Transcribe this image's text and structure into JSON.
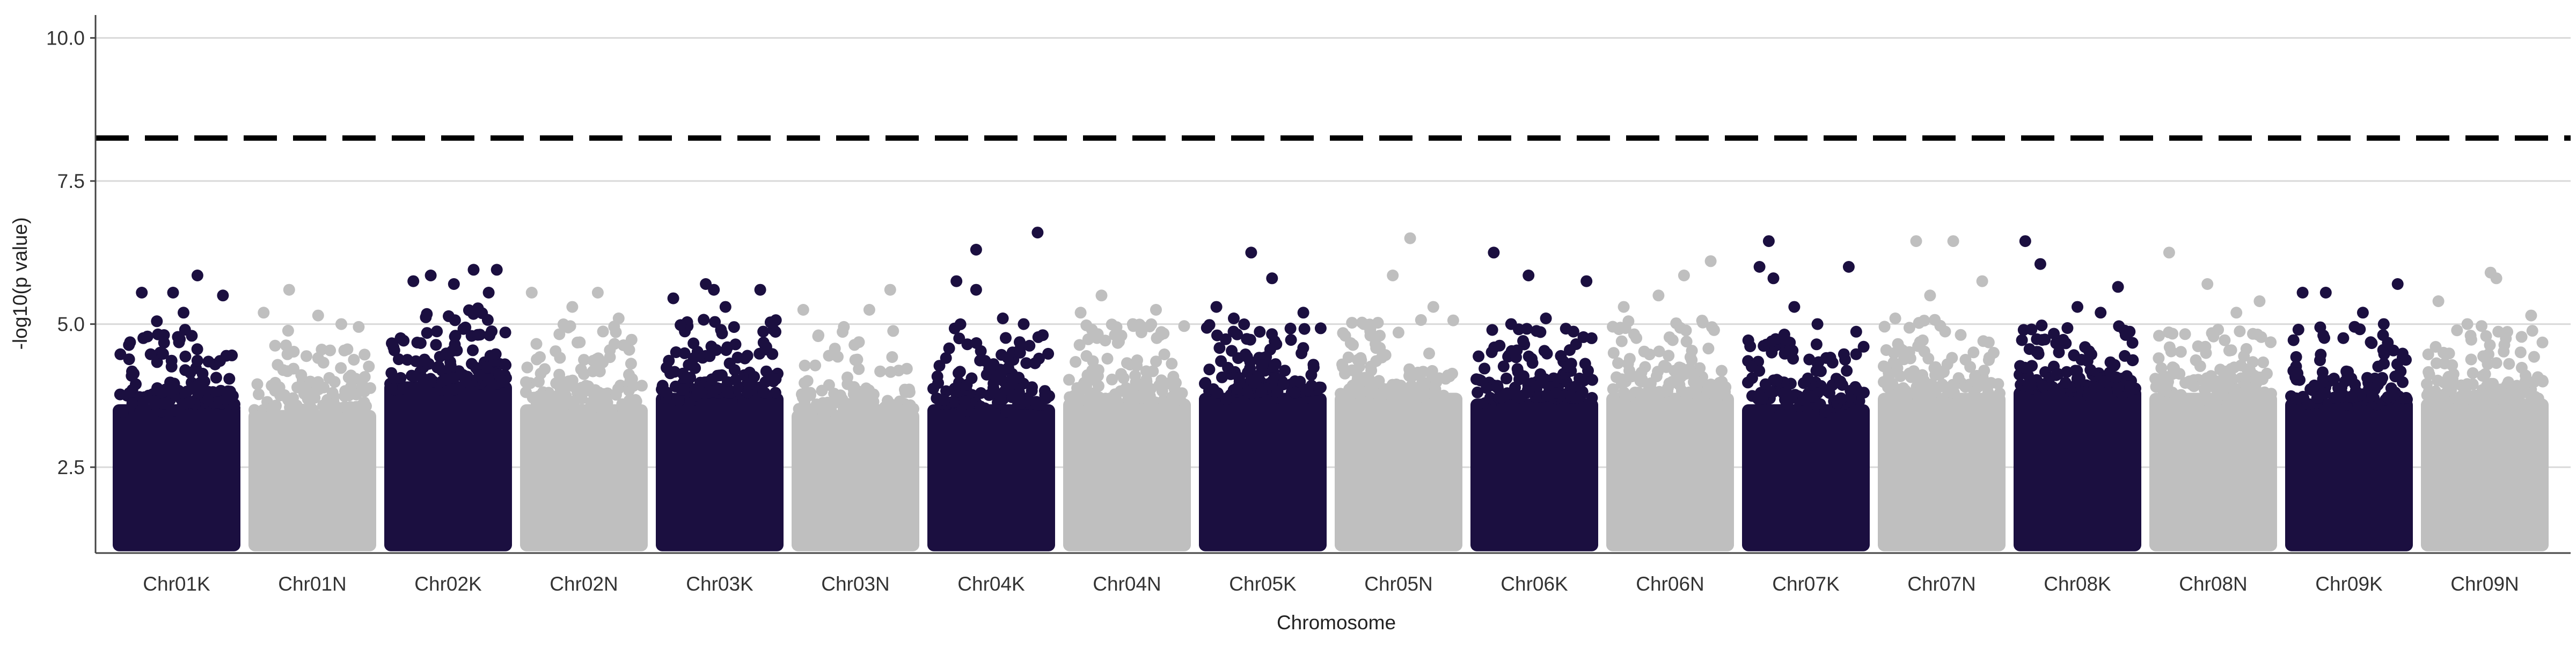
{
  "chart_data": {
    "type": "scatter",
    "title": "",
    "xlabel": "Chromosome",
    "ylabel": "-log10(p value)",
    "ylim": [
      1,
      10.4
    ],
    "yticks": [
      2.5,
      5.0,
      7.5,
      10.0
    ],
    "ytick_labels": [
      "2.5",
      "5.0",
      "7.5",
      "10.0"
    ],
    "threshold": 8.25,
    "grid": "horizontal-major",
    "legend": "none",
    "colors": {
      "odd": "#1b0f40",
      "even": "#bfbfbf",
      "threshold": "#000000",
      "grid": "#d9d9d9",
      "axis": "#444444",
      "text": "#333333"
    },
    "categories": [
      "Chr01K",
      "Chr01N",
      "Chr02K",
      "Chr02N",
      "Chr03K",
      "Chr03N",
      "Chr04K",
      "Chr04N",
      "Chr05K",
      "Chr05N",
      "Chr06K",
      "Chr06N",
      "Chr07K",
      "Chr07N",
      "Chr08K",
      "Chr08N",
      "Chr09K",
      "Chr09N"
    ],
    "series": [
      {
        "category": "Chr01K",
        "dense_max": 3.6,
        "spread_max": 5.0,
        "top_points": [
          [
            0.2,
            5.55
          ],
          [
            0.47,
            5.55
          ],
          [
            0.68,
            5.85
          ],
          [
            0.9,
            5.5
          ],
          [
            0.56,
            5.2
          ],
          [
            0.33,
            5.05
          ]
        ]
      },
      {
        "category": "Chr01N",
        "dense_max": 3.5,
        "spread_max": 4.9,
        "top_points": [
          [
            0.3,
            5.6
          ],
          [
            0.55,
            5.15
          ],
          [
            0.08,
            5.2
          ],
          [
            0.75,
            5.0
          ],
          [
            0.9,
            4.95
          ]
        ]
      },
      {
        "category": "Chr02K",
        "dense_max": 4.0,
        "spread_max": 5.3,
        "top_points": [
          [
            0.35,
            5.85
          ],
          [
            0.55,
            5.7
          ],
          [
            0.72,
            5.95
          ],
          [
            0.92,
            5.95
          ],
          [
            0.2,
            5.75
          ],
          [
            0.85,
            5.55
          ]
        ]
      },
      {
        "category": "Chr02N",
        "dense_max": 3.6,
        "spread_max": 5.0,
        "top_points": [
          [
            0.05,
            5.55
          ],
          [
            0.62,
            5.55
          ],
          [
            0.4,
            5.3
          ],
          [
            0.8,
            5.1
          ]
        ]
      },
      {
        "category": "Chr03K",
        "dense_max": 3.8,
        "spread_max": 5.1,
        "top_points": [
          [
            0.38,
            5.7
          ],
          [
            0.45,
            5.6
          ],
          [
            0.85,
            5.6
          ],
          [
            0.1,
            5.45
          ],
          [
            0.55,
            5.3
          ]
        ]
      },
      {
        "category": "Chr03N",
        "dense_max": 3.5,
        "spread_max": 4.9,
        "top_points": [
          [
            0.8,
            5.6
          ],
          [
            0.05,
            5.25
          ],
          [
            0.62,
            5.25
          ],
          [
            0.4,
            4.95
          ]
        ]
      },
      {
        "category": "Chr04K",
        "dense_max": 3.6,
        "spread_max": 5.0,
        "top_points": [
          [
            0.37,
            6.3
          ],
          [
            0.9,
            6.6
          ],
          [
            0.2,
            5.75
          ],
          [
            0.37,
            5.6
          ],
          [
            0.6,
            5.1
          ],
          [
            0.78,
            5.0
          ]
        ]
      },
      {
        "category": "Chr04N",
        "dense_max": 3.7,
        "spread_max": 5.0,
        "top_points": [
          [
            0.28,
            5.5
          ],
          [
            0.75,
            5.25
          ],
          [
            0.1,
            5.2
          ],
          [
            0.55,
            5.0
          ]
        ]
      },
      {
        "category": "Chr05K",
        "dense_max": 3.8,
        "spread_max": 5.0,
        "top_points": [
          [
            0.4,
            6.25
          ],
          [
            0.58,
            5.8
          ],
          [
            0.1,
            5.3
          ],
          [
            0.85,
            5.2
          ],
          [
            0.25,
            5.1
          ]
        ]
      },
      {
        "category": "Chr05N",
        "dense_max": 3.8,
        "spread_max": 5.1,
        "top_points": [
          [
            0.6,
            6.5
          ],
          [
            0.45,
            5.85
          ],
          [
            0.8,
            5.3
          ],
          [
            0.2,
            5.0
          ]
        ]
      },
      {
        "category": "Chr06K",
        "dense_max": 3.7,
        "spread_max": 5.0,
        "top_points": [
          [
            0.15,
            6.25
          ],
          [
            0.45,
            5.85
          ],
          [
            0.95,
            5.75
          ],
          [
            0.6,
            5.1
          ],
          [
            0.3,
            5.0
          ]
        ]
      },
      {
        "category": "Chr06N",
        "dense_max": 3.8,
        "spread_max": 5.1,
        "top_points": [
          [
            0.85,
            6.1
          ],
          [
            0.62,
            5.85
          ],
          [
            0.4,
            5.5
          ],
          [
            0.1,
            5.3
          ]
        ]
      },
      {
        "category": "Chr07K",
        "dense_max": 3.6,
        "spread_max": 4.9,
        "top_points": [
          [
            0.18,
            6.45
          ],
          [
            0.1,
            6.0
          ],
          [
            0.22,
            5.8
          ],
          [
            0.87,
            6.0
          ],
          [
            0.4,
            5.3
          ],
          [
            0.6,
            5.0
          ]
        ]
      },
      {
        "category": "Chr07N",
        "dense_max": 3.8,
        "spread_max": 5.1,
        "top_points": [
          [
            0.28,
            6.45
          ],
          [
            0.6,
            6.45
          ],
          [
            0.85,
            5.75
          ],
          [
            0.4,
            5.5
          ],
          [
            0.1,
            5.1
          ]
        ]
      },
      {
        "category": "Chr08K",
        "dense_max": 3.9,
        "spread_max": 5.0,
        "top_points": [
          [
            0.05,
            6.45
          ],
          [
            0.18,
            6.05
          ],
          [
            0.85,
            5.65
          ],
          [
            0.5,
            5.3
          ],
          [
            0.7,
            5.2
          ]
        ]
      },
      {
        "category": "Chr08N",
        "dense_max": 3.8,
        "spread_max": 5.0,
        "top_points": [
          [
            0.12,
            6.25
          ],
          [
            0.45,
            5.7
          ],
          [
            0.9,
            5.4
          ],
          [
            0.7,
            5.2
          ]
        ]
      },
      {
        "category": "Chr09K",
        "dense_max": 3.7,
        "spread_max": 5.0,
        "top_points": [
          [
            0.1,
            5.55
          ],
          [
            0.3,
            5.55
          ],
          [
            0.92,
            5.7
          ],
          [
            0.62,
            5.2
          ],
          [
            0.8,
            5.0
          ]
        ]
      },
      {
        "category": "Chr09N",
        "dense_max": 3.7,
        "spread_max": 5.0,
        "top_points": [
          [
            0.55,
            5.9
          ],
          [
            0.6,
            5.8
          ],
          [
            0.1,
            5.4
          ],
          [
            0.9,
            5.15
          ],
          [
            0.35,
            5.0
          ]
        ]
      }
    ]
  }
}
